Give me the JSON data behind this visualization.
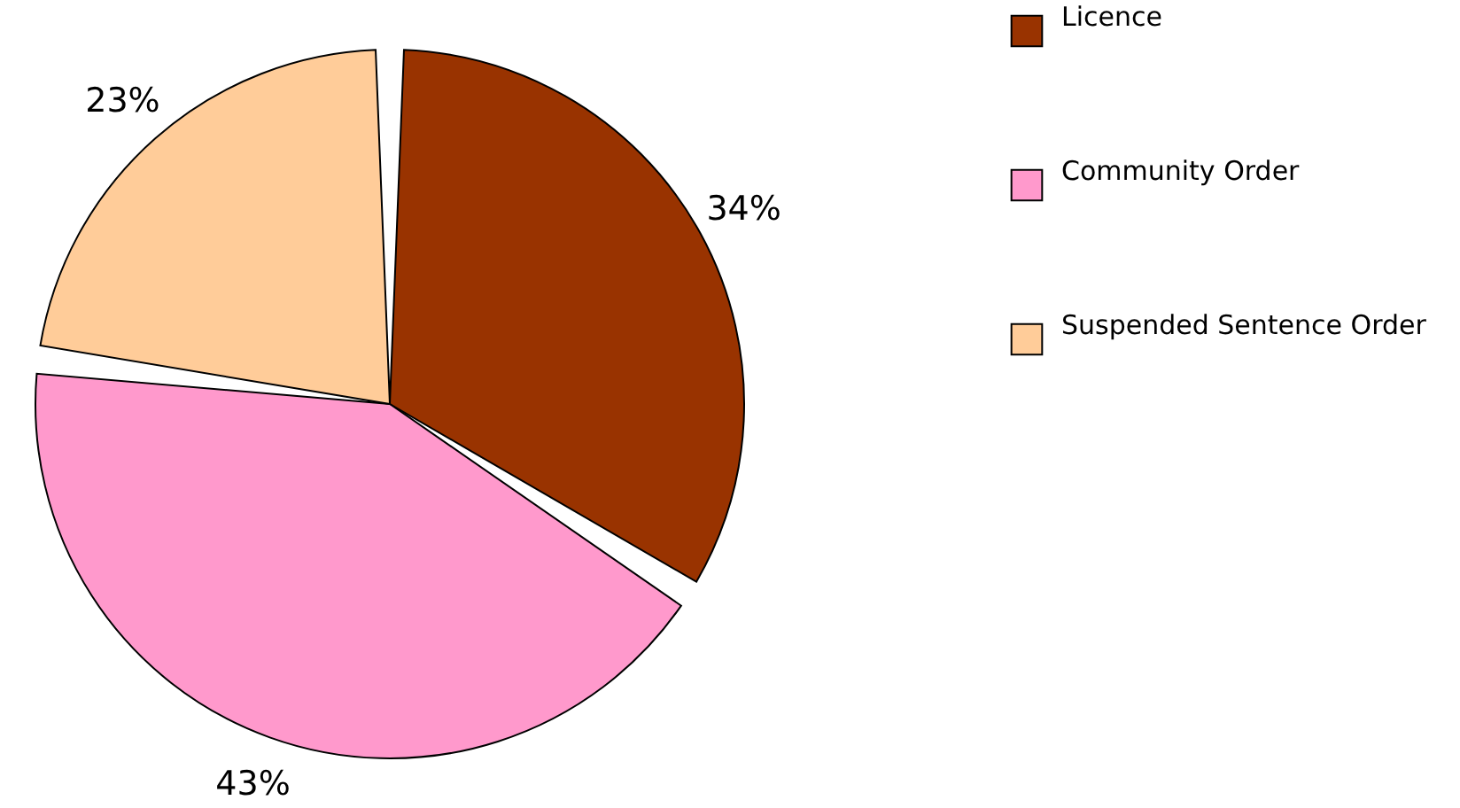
{
  "chart_data": {
    "type": "pie",
    "categories": [
      "Licence",
      "Community Order",
      "Suspended Sentence Order"
    ],
    "values": [
      34,
      43,
      23
    ],
    "colors": [
      "#993300",
      "#ff99cc",
      "#ffcc99"
    ],
    "value_labels": [
      "34%",
      "43%",
      "23%"
    ],
    "legend": "right"
  }
}
